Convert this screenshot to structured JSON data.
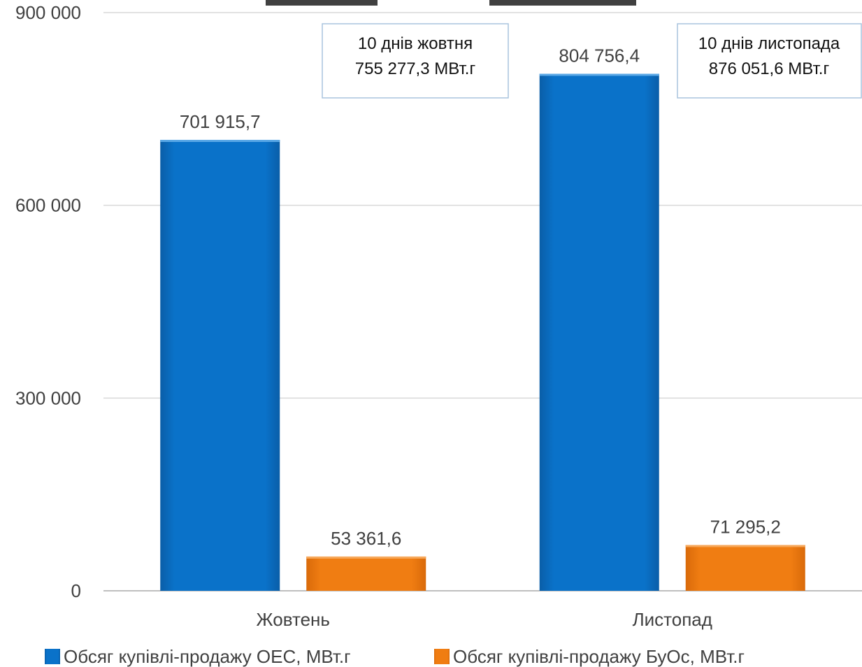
{
  "chart_data": {
    "type": "bar",
    "title": "",
    "xlabel": "",
    "ylabel": "",
    "categories": [
      "Жовтень",
      "Листопад"
    ],
    "series": [
      {
        "name": "Обсяг купівлі-продажу ОЕС, МВт.г",
        "values": [
          701915.7,
          804756.4
        ],
        "value_labels": [
          "701 915,7",
          "804 756,4"
        ],
        "color": "#0a72c9"
      },
      {
        "name": "Обсяг купівлі-продажу БуОс, МВт.г",
        "values": [
          53361.6,
          71295.2
        ],
        "value_labels": [
          "53 361,6",
          "71 295,2"
        ],
        "color": "#f07d12"
      }
    ],
    "ylim": [
      0,
      900000
    ],
    "y_ticks": [
      0,
      300000,
      600000,
      900000
    ],
    "y_tick_labels": [
      "0",
      "300 000",
      "600 000",
      "900 000"
    ],
    "grid": true,
    "legend_position": "bottom",
    "annotations": [
      {
        "line1": "10 днів жовтня",
        "line2": "755 277,3 МВт.г"
      },
      {
        "line1": "10 днів листопада",
        "line2": "876 051,6 МВт.г"
      }
    ]
  }
}
